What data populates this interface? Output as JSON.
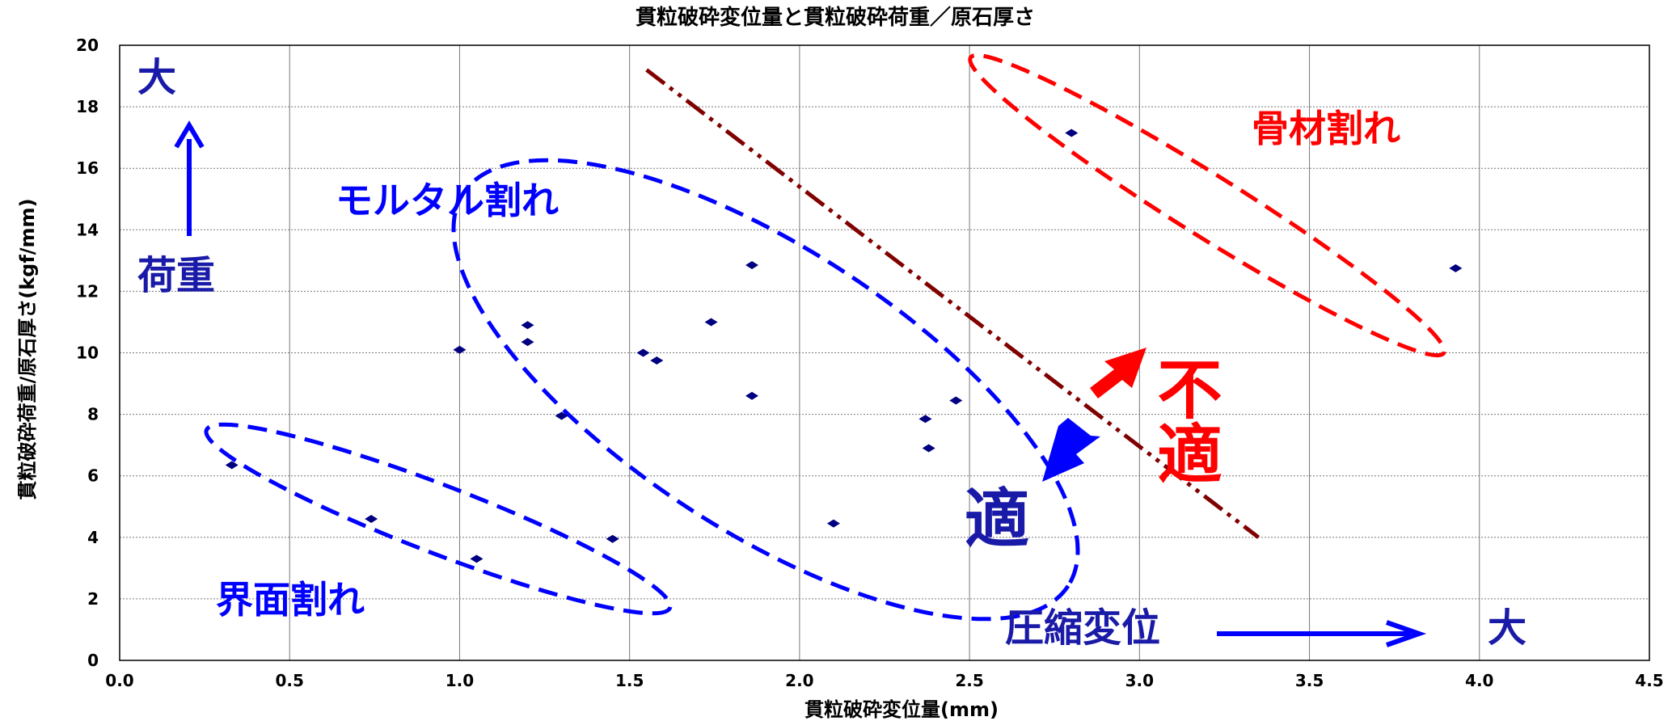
{
  "chart_data": {
    "type": "scatter",
    "title": "貫粒破砕変位量と貫粒破砕荷重／原石厚さ",
    "xlabel": "貫粒破砕変位量(mm)",
    "ylabel": "貫粒破砕荷重/原石厚さ(kgf/mm)",
    "xlim": [
      0.0,
      4.5
    ],
    "ylim": [
      0,
      20
    ],
    "xticks": [
      "0.0",
      "0.5",
      "1.0",
      "1.5",
      "2.0",
      "2.5",
      "3.0",
      "3.5",
      "4.0",
      "4.5"
    ],
    "yticks": [
      "0",
      "2",
      "4",
      "6",
      "8",
      "10",
      "12",
      "14",
      "16",
      "18",
      "20"
    ],
    "grid": true,
    "marker_color": "#000080",
    "points": [
      {
        "x": 0.33,
        "y": 6.35
      },
      {
        "x": 0.74,
        "y": 4.6
      },
      {
        "x": 1.05,
        "y": 3.3
      },
      {
        "x": 1.45,
        "y": 3.95
      },
      {
        "x": 1.0,
        "y": 10.1
      },
      {
        "x": 1.2,
        "y": 10.9
      },
      {
        "x": 1.2,
        "y": 10.35
      },
      {
        "x": 1.3,
        "y": 7.95
      },
      {
        "x": 1.54,
        "y": 10.0
      },
      {
        "x": 1.58,
        "y": 9.75
      },
      {
        "x": 1.74,
        "y": 11.0
      },
      {
        "x": 1.86,
        "y": 12.85
      },
      {
        "x": 1.86,
        "y": 8.6
      },
      {
        "x": 2.1,
        "y": 4.45
      },
      {
        "x": 2.37,
        "y": 7.85
      },
      {
        "x": 2.38,
        "y": 6.9
      },
      {
        "x": 2.46,
        "y": 8.45
      },
      {
        "x": 2.8,
        "y": 17.15
      },
      {
        "x": 3.93,
        "y": 12.75
      }
    ],
    "boundary_line": {
      "from": [
        1.55,
        19.2
      ],
      "to": [
        3.35,
        4.0
      ],
      "color": "#800000"
    },
    "annotations": {
      "large_top": "大",
      "load": "荷重",
      "mortar": "モルタル割れ",
      "interface": "界面割れ",
      "aggregate": "骨材割れ",
      "unsuitable": "不適",
      "suitable": "適",
      "compression": "圧縮変位",
      "large_right": "大"
    },
    "colors": {
      "blue": "#0000ff",
      "red": "#ff0000",
      "dark_blue": "#1a1aa8",
      "dark_red": "#800000"
    }
  }
}
